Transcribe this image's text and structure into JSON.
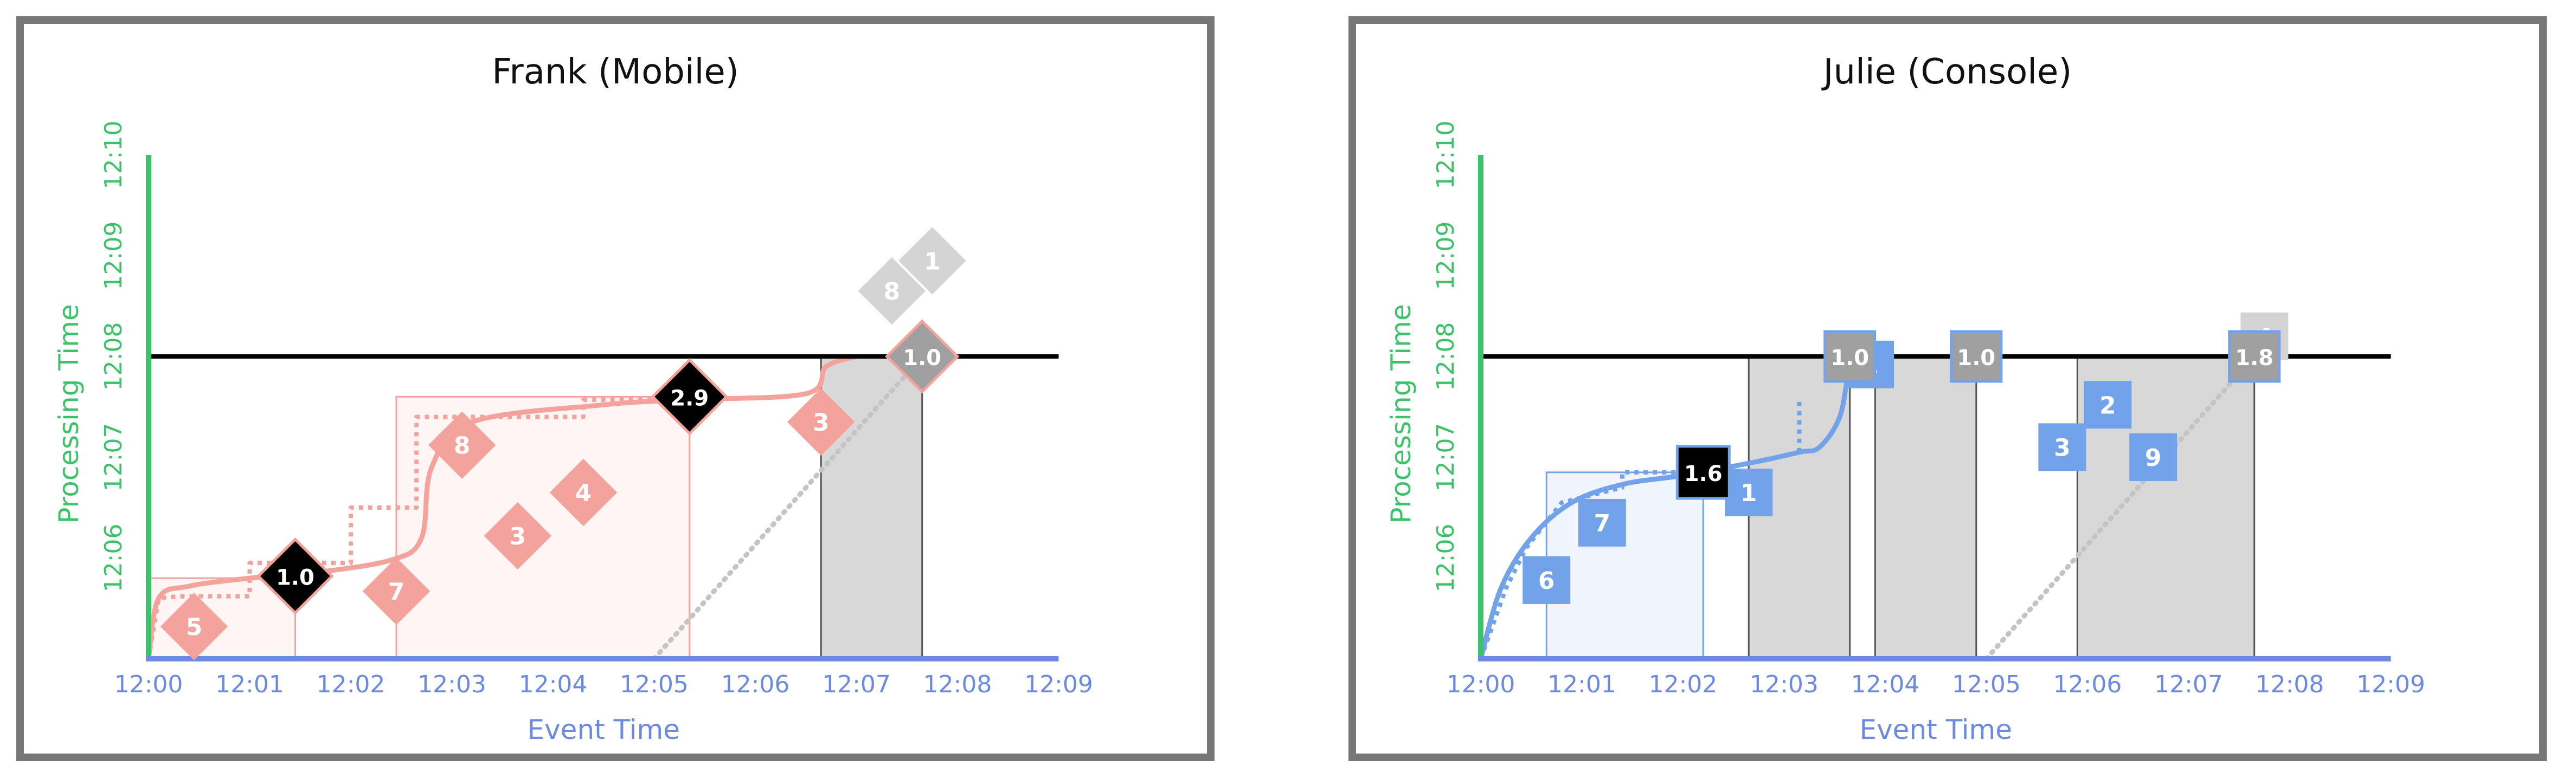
{
  "colors": {
    "event_axis": "#6c8ae0",
    "processing_axis": "#3cc36a",
    "frank": "#f4a29c",
    "julie": "#72a2ea",
    "gray_window": "#d8d8d8",
    "gray_marker": "#a0a0a0",
    "now_line": "#000000"
  },
  "chart_data": [
    {
      "type": "scatter",
      "title": "Frank (Mobile)",
      "xlabel": "Event Time",
      "ylabel": "Processing Time",
      "x_ticks": [
        "12:00",
        "12:01",
        "12:02",
        "12:03",
        "12:04",
        "12:05",
        "12:06",
        "12:07",
        "12:08",
        "12:09"
      ],
      "y_ticks": [
        "12:06",
        "12:07",
        "12:08",
        "12:09",
        "12:10"
      ],
      "xlim_minutes": [
        0,
        9
      ],
      "ylim_minutes": [
        5,
        10
      ],
      "now_processing_minute": 8,
      "color": "#f4a29c",
      "windows": [
        {
          "start": 0.0,
          "end": 1.45,
          "output_at": 5.8,
          "state": "fired"
        },
        {
          "start": 2.45,
          "end": 5.35,
          "output_at": 7.6,
          "state": "fired"
        },
        {
          "start": 6.65,
          "end": 7.65,
          "output_at": 8.0,
          "state": "pending"
        }
      ],
      "data_points": [
        {
          "label": "5",
          "event": 0.45,
          "processing": 5.32,
          "state": "on_time"
        },
        {
          "label": "7",
          "event": 2.45,
          "processing": 5.67,
          "state": "on_time"
        },
        {
          "label": "8",
          "event": 3.1,
          "processing": 7.12,
          "state": "on_time"
        },
        {
          "label": "3",
          "event": 3.65,
          "processing": 6.22,
          "state": "on_time"
        },
        {
          "label": "4",
          "event": 4.3,
          "processing": 6.65,
          "state": "on_time"
        },
        {
          "label": "3",
          "event": 6.65,
          "processing": 7.35,
          "state": "on_time"
        },
        {
          "label": "8",
          "event": 7.35,
          "processing": 8.65,
          "state": "future"
        },
        {
          "label": "1",
          "event": 7.75,
          "processing": 8.95,
          "state": "future"
        }
      ],
      "results": [
        {
          "label": "1.0",
          "event": 1.45,
          "processing": 5.82,
          "state": "emitted"
        },
        {
          "label": "2.9",
          "event": 5.35,
          "processing": 7.6,
          "state": "emitted"
        },
        {
          "label": "1.0",
          "event": 7.65,
          "processing": 8.0,
          "state": "pending"
        }
      ],
      "watermark_ideal": [
        [
          0.0,
          5.0
        ],
        [
          0.1,
          5.6
        ],
        [
          0.4,
          5.72
        ],
        [
          1.0,
          5.8
        ],
        [
          1.6,
          5.85
        ],
        [
          2.4,
          5.98
        ],
        [
          2.7,
          6.2
        ],
        [
          2.8,
          6.9
        ],
        [
          3.2,
          7.35
        ],
        [
          4.5,
          7.52
        ],
        [
          5.3,
          7.57
        ],
        [
          6.5,
          7.63
        ],
        [
          6.7,
          7.9
        ],
        [
          7.0,
          8.0
        ]
      ],
      "watermark_heuristic": [
        [
          0.0,
          5.0
        ],
        [
          0.1,
          5.6
        ],
        [
          0.3,
          5.62
        ],
        [
          1.0,
          5.62
        ],
        [
          1.0,
          5.95
        ],
        [
          2.0,
          5.95
        ],
        [
          2.0,
          6.5
        ],
        [
          2.65,
          6.5
        ],
        [
          2.65,
          7.4
        ],
        [
          4.3,
          7.4
        ],
        [
          4.3,
          7.57
        ],
        [
          5.3,
          7.57
        ]
      ],
      "diagonal_from": [
        5.0,
        5.0
      ],
      "diagonal_to": [
        7.65,
        8.0
      ]
    },
    {
      "type": "scatter",
      "title": "Julie (Console)",
      "xlabel": "Event Time",
      "ylabel": "Processing Time",
      "x_ticks": [
        "12:00",
        "12:01",
        "12:02",
        "12:03",
        "12:04",
        "12:05",
        "12:06",
        "12:07",
        "12:08",
        "12:09"
      ],
      "y_ticks": [
        "12:06",
        "12:07",
        "12:08",
        "12:09",
        "12:10"
      ],
      "xlim_minutes": [
        0,
        9
      ],
      "ylim_minutes": [
        5,
        10
      ],
      "now_processing_minute": 8,
      "color": "#72a2ea",
      "windows": [
        {
          "start": 0.65,
          "end": 2.2,
          "output_at": 6.85,
          "state": "fired"
        },
        {
          "start": 2.65,
          "end": 3.65,
          "output_at": 8.0,
          "state": "pending"
        },
        {
          "start": 3.9,
          "end": 4.9,
          "output_at": 8.0,
          "state": "pending"
        },
        {
          "start": 5.9,
          "end": 7.65,
          "output_at": 8.0,
          "state": "pending"
        }
      ],
      "data_points": [
        {
          "label": "6",
          "event": 0.65,
          "processing": 5.78,
          "state": "on_time"
        },
        {
          "label": "7",
          "event": 1.2,
          "processing": 6.35,
          "state": "on_time"
        },
        {
          "label": "1",
          "event": 2.65,
          "processing": 6.65,
          "state": "on_time"
        },
        {
          "label": "2",
          "event": 6.2,
          "processing": 7.52,
          "state": "on_time"
        },
        {
          "label": "3",
          "event": 5.75,
          "processing": 7.1,
          "state": "on_time"
        },
        {
          "label": "9",
          "event": 6.65,
          "processing": 7.0,
          "state": "on_time"
        },
        {
          "label": "1",
          "event": 3.85,
          "processing": 7.92,
          "state": "on_time"
        },
        {
          "label": "4",
          "event": 7.75,
          "processing": 8.2,
          "state": "future"
        }
      ],
      "results": [
        {
          "label": "1.6",
          "event": 2.2,
          "processing": 6.85,
          "state": "emitted"
        },
        {
          "label": "1.0",
          "event": 3.65,
          "processing": 8.0,
          "state": "pending"
        },
        {
          "label": "1.0",
          "event": 4.9,
          "processing": 8.0,
          "state": "pending"
        },
        {
          "label": "1.8",
          "event": 7.65,
          "processing": 8.0,
          "state": "pending"
        }
      ],
      "watermark_ideal": [
        [
          0.0,
          5.0
        ],
        [
          0.2,
          5.7
        ],
        [
          0.5,
          6.2
        ],
        [
          0.9,
          6.55
        ],
        [
          1.4,
          6.73
        ],
        [
          2.0,
          6.82
        ],
        [
          2.7,
          6.95
        ],
        [
          3.15,
          7.05
        ],
        [
          3.35,
          7.1
        ],
        [
          3.55,
          7.4
        ],
        [
          3.65,
          7.9
        ],
        [
          3.75,
          8.0
        ]
      ],
      "watermark_heuristic": [
        [
          0.0,
          5.0
        ],
        [
          0.25,
          5.7
        ],
        [
          0.45,
          6.1
        ],
        [
          0.8,
          6.55
        ],
        [
          1.4,
          6.7
        ],
        [
          1.4,
          6.85
        ],
        [
          2.2,
          6.85
        ]
      ],
      "late_marker": [
        3.15,
        7.55
      ],
      "diagonal_from": [
        5.0,
        5.0
      ],
      "diagonal_to": [
        7.65,
        8.0
      ]
    }
  ]
}
